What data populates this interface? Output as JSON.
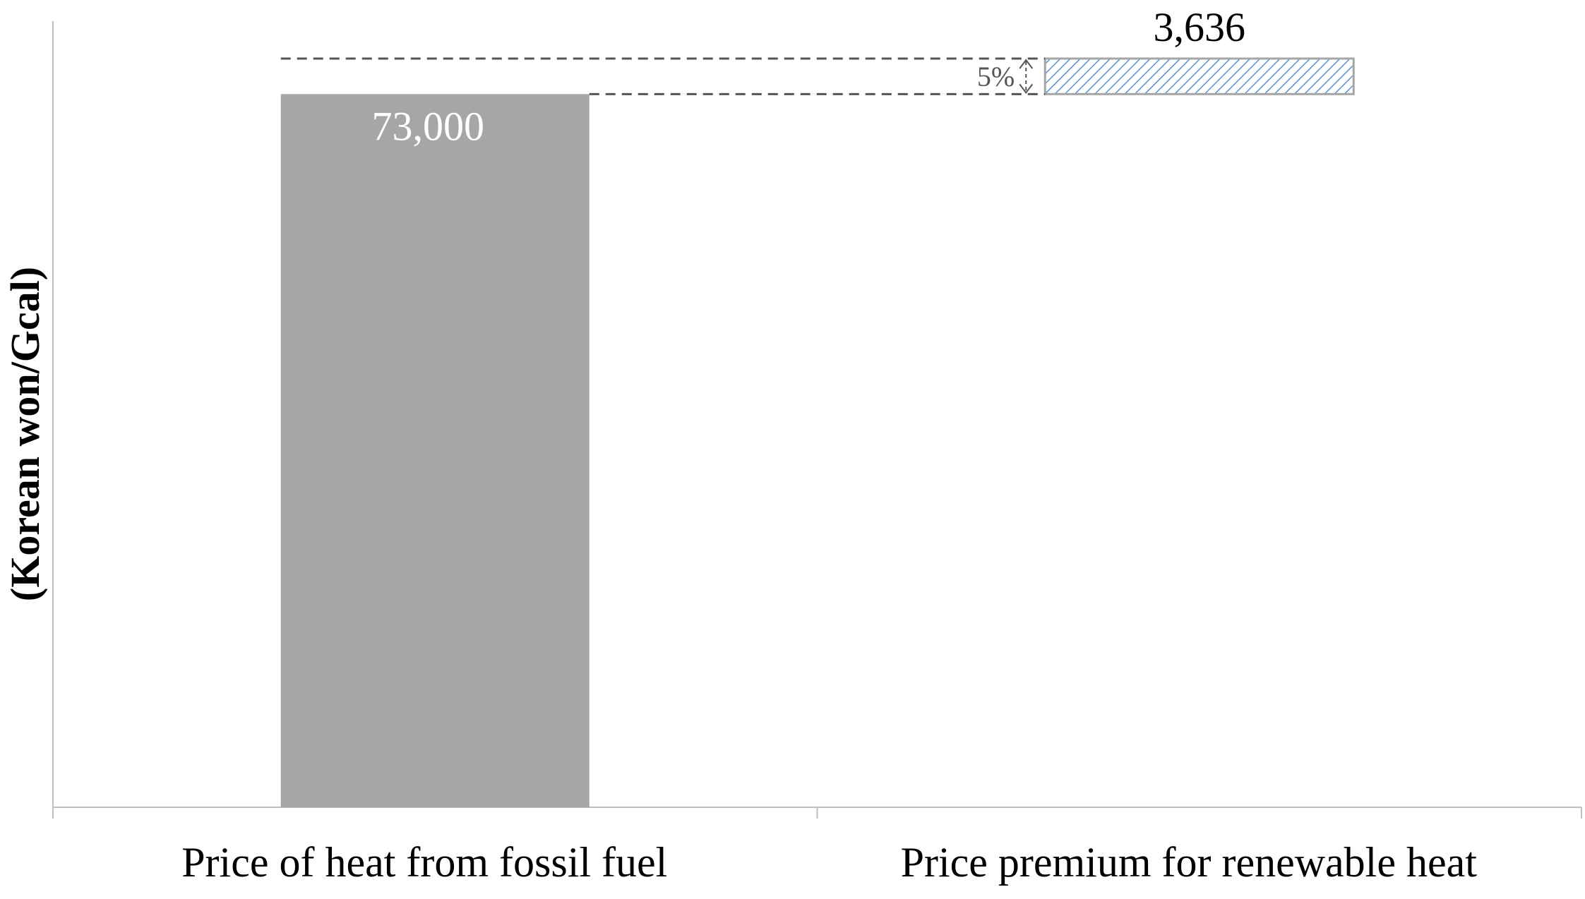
{
  "chart_data": {
    "type": "bar",
    "variant": "waterfall",
    "title": "",
    "xlabel": "",
    "ylabel": "(Korean won/Gcal)",
    "ylim": [
      0,
      76636
    ],
    "grid": false,
    "legend": "none",
    "categories": [
      "Price of heat from fossil fuel",
      "Price premium for renewable heat"
    ],
    "bars": [
      {
        "category": "Price of heat from fossil fuel",
        "base": 0,
        "value": 73000,
        "label": "73,000",
        "fill": "#a6a6a6",
        "pattern": "solid"
      },
      {
        "category": "Price premium for renewable heat",
        "base": 73000,
        "value": 3636,
        "label": "3,636",
        "fill": "#ffffff",
        "pattern": "diagonal-hatch",
        "stroke": "#a6a6a6",
        "hatch_color": "#5b8fd1"
      }
    ],
    "annotation": {
      "text": "5%",
      "from": 73000,
      "to": 76636,
      "style": "double-arrow-with-dashed-guides"
    }
  }
}
